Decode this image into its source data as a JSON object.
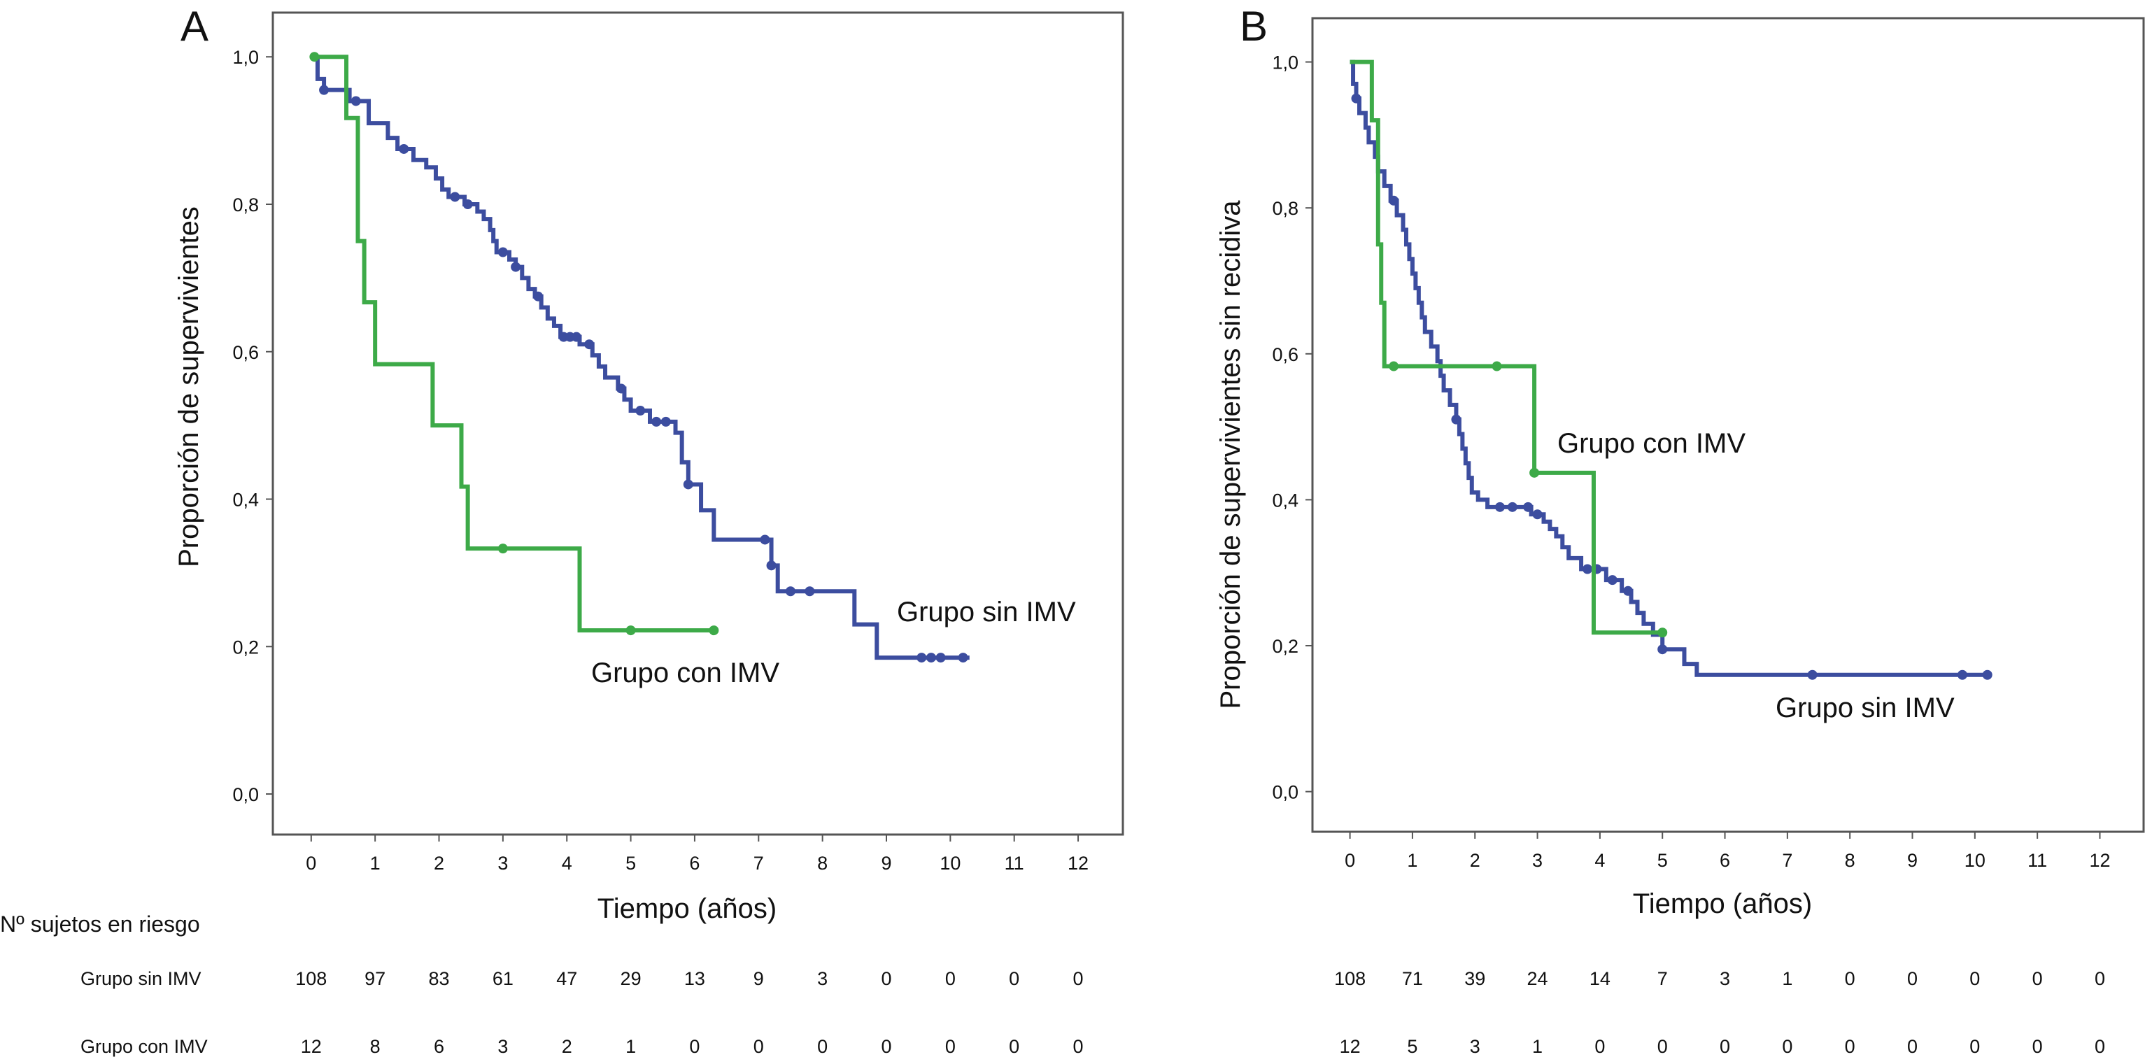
{
  "risk_table": {
    "title": "Nº sujetos en riesgo",
    "rows": [
      {
        "label": "Grupo sin IMV",
        "a": [
          "108",
          "97",
          "83",
          "61",
          "47",
          "29",
          "13",
          "9",
          "3",
          "0",
          "0",
          "0",
          "0"
        ],
        "b": [
          "108",
          "71",
          "39",
          "24",
          "14",
          "7",
          "3",
          "1",
          "0",
          "0",
          "0",
          "0",
          "0"
        ]
      },
      {
        "label": "Grupo con IMV",
        "a": [
          "12",
          "8",
          "6",
          "3",
          "2",
          "1",
          "0",
          "0",
          "0",
          "0",
          "0",
          "0",
          "0"
        ],
        "b": [
          "12",
          "5",
          "3",
          "1",
          "0",
          "0",
          "0",
          "0",
          "0",
          "0",
          "0",
          "0",
          "0"
        ]
      }
    ]
  },
  "chart_data": [
    {
      "type": "line",
      "panel_label": "A",
      "xlabel": "Tiempo (años)",
      "ylabel": "Proporción de supervivientes",
      "xlim": [
        -0.6,
        12.7
      ],
      "ylim": [
        -0.055,
        1.06
      ],
      "x_ticks": [
        0,
        1,
        2,
        3,
        4,
        5,
        6,
        7,
        8,
        9,
        10,
        11,
        12
      ],
      "y_ticks": [
        0.0,
        0.2,
        0.4,
        0.6,
        0.8,
        1.0
      ],
      "y_tick_labels": [
        "0,0",
        "0,2",
        "0,4",
        "0,6",
        "0,8",
        "1,0"
      ],
      "grid": false,
      "series": [
        {
          "name": "Grupo sin IMV",
          "color": "#3c4d9f",
          "label": "Grupo sin IMV",
          "steps": [
            [
              0,
              1.0
            ],
            [
              0.1,
              0.97
            ],
            [
              0.2,
              0.955
            ],
            [
              0.6,
              0.94
            ],
            [
              0.9,
              0.91
            ],
            [
              1.2,
              0.89
            ],
            [
              1.35,
              0.875
            ],
            [
              1.6,
              0.86
            ],
            [
              1.8,
              0.85
            ],
            [
              1.95,
              0.835
            ],
            [
              2.05,
              0.82
            ],
            [
              2.15,
              0.81
            ],
            [
              2.4,
              0.8
            ],
            [
              2.6,
              0.79
            ],
            [
              2.7,
              0.78
            ],
            [
              2.8,
              0.765
            ],
            [
              2.85,
              0.75
            ],
            [
              2.9,
              0.735
            ],
            [
              3.1,
              0.725
            ],
            [
              3.2,
              0.715
            ],
            [
              3.3,
              0.7
            ],
            [
              3.4,
              0.685
            ],
            [
              3.5,
              0.675
            ],
            [
              3.6,
              0.66
            ],
            [
              3.7,
              0.645
            ],
            [
              3.8,
              0.635
            ],
            [
              3.9,
              0.62
            ],
            [
              4.2,
              0.61
            ],
            [
              4.4,
              0.595
            ],
            [
              4.5,
              0.58
            ],
            [
              4.6,
              0.565
            ],
            [
              4.8,
              0.55
            ],
            [
              4.9,
              0.535
            ],
            [
              5.0,
              0.52
            ],
            [
              5.3,
              0.505
            ],
            [
              5.7,
              0.49
            ],
            [
              5.8,
              0.45
            ],
            [
              5.9,
              0.42
            ],
            [
              6.1,
              0.385
            ],
            [
              6.3,
              0.345
            ],
            [
              7.2,
              0.31
            ],
            [
              7.3,
              0.275
            ],
            [
              8.5,
              0.23
            ],
            [
              8.85,
              0.185
            ],
            [
              10.3,
              0.185
            ]
          ],
          "censor_x": [
            0.2,
            0.7,
            1.45,
            2.25,
            2.45,
            3.0,
            3.2,
            3.55,
            3.95,
            4.05,
            4.15,
            4.35,
            4.85,
            5.15,
            5.4,
            5.55,
            5.9,
            7.1,
            7.2,
            7.5,
            7.8,
            9.55,
            9.7,
            9.85,
            10.2
          ]
        },
        {
          "name": "Grupo con IMV",
          "color": "#3daa48",
          "label": "Grupo con IMV",
          "steps": [
            [
              0,
              1.0
            ],
            [
              0.55,
              0.917
            ],
            [
              0.73,
              0.75
            ],
            [
              0.83,
              0.667
            ],
            [
              1.0,
              0.583
            ],
            [
              1.9,
              0.5
            ],
            [
              2.35,
              0.417
            ],
            [
              2.45,
              0.333
            ],
            [
              4.2,
              0.222
            ],
            [
              6.3,
              0.222
            ]
          ],
          "censor_x": [
            0.05,
            3.0,
            5.0,
            6.3
          ]
        }
      ]
    },
    {
      "type": "line",
      "panel_label": "B",
      "xlabel": "Tiempo (años)",
      "ylabel": "Proporción de supervivientes sin recidiva",
      "xlim": [
        -0.6,
        12.7
      ],
      "ylim": [
        -0.055,
        1.06
      ],
      "x_ticks": [
        0,
        1,
        2,
        3,
        4,
        5,
        6,
        7,
        8,
        9,
        10,
        11,
        12
      ],
      "y_ticks": [
        0.0,
        0.2,
        0.4,
        0.6,
        0.8,
        1.0
      ],
      "y_tick_labels": [
        "0,0",
        "0,2",
        "0,4",
        "0,6",
        "0,8",
        "1,0"
      ],
      "grid": false,
      "series": [
        {
          "name": "Grupo sin IMV",
          "color": "#3c4d9f",
          "label": "Grupo sin IMV",
          "steps": [
            [
              0,
              1.0
            ],
            [
              0.05,
              0.97
            ],
            [
              0.1,
              0.95
            ],
            [
              0.15,
              0.93
            ],
            [
              0.25,
              0.91
            ],
            [
              0.3,
              0.89
            ],
            [
              0.4,
              0.87
            ],
            [
              0.45,
              0.85
            ],
            [
              0.55,
              0.83
            ],
            [
              0.65,
              0.81
            ],
            [
              0.75,
              0.79
            ],
            [
              0.85,
              0.77
            ],
            [
              0.9,
              0.75
            ],
            [
              0.95,
              0.73
            ],
            [
              1.0,
              0.71
            ],
            [
              1.05,
              0.69
            ],
            [
              1.1,
              0.67
            ],
            [
              1.15,
              0.65
            ],
            [
              1.2,
              0.63
            ],
            [
              1.3,
              0.61
            ],
            [
              1.4,
              0.59
            ],
            [
              1.45,
              0.57
            ],
            [
              1.5,
              0.55
            ],
            [
              1.6,
              0.53
            ],
            [
              1.7,
              0.51
            ],
            [
              1.75,
              0.49
            ],
            [
              1.8,
              0.47
            ],
            [
              1.85,
              0.45
            ],
            [
              1.9,
              0.43
            ],
            [
              1.95,
              0.41
            ],
            [
              2.05,
              0.4
            ],
            [
              2.2,
              0.39
            ],
            [
              2.9,
              0.38
            ],
            [
              3.1,
              0.37
            ],
            [
              3.2,
              0.36
            ],
            [
              3.3,
              0.35
            ],
            [
              3.4,
              0.335
            ],
            [
              3.5,
              0.32
            ],
            [
              3.7,
              0.305
            ],
            [
              4.1,
              0.29
            ],
            [
              4.35,
              0.275
            ],
            [
              4.5,
              0.26
            ],
            [
              4.6,
              0.245
            ],
            [
              4.7,
              0.23
            ],
            [
              4.85,
              0.215
            ],
            [
              5.0,
              0.195
            ],
            [
              5.35,
              0.175
            ],
            [
              5.55,
              0.16
            ],
            [
              10.2,
              0.16
            ]
          ],
          "censor_x": [
            0.1,
            0.7,
            1.7,
            2.4,
            2.6,
            2.85,
            3.0,
            3.8,
            3.95,
            4.2,
            4.45,
            5.0,
            7.4,
            9.8,
            10.2
          ]
        },
        {
          "name": "Grupo con IMV",
          "color": "#3daa48",
          "label": "Grupo con IMV",
          "steps": [
            [
              0,
              1.0
            ],
            [
              0.35,
              0.92
            ],
            [
              0.45,
              0.75
            ],
            [
              0.5,
              0.67
            ],
            [
              0.55,
              0.583
            ],
            [
              2.95,
              0.437
            ],
            [
              3.9,
              0.218
            ],
            [
              5.0,
              0.218
            ]
          ],
          "censor_x": [
            0.7,
            2.35,
            2.95,
            5.0
          ]
        }
      ]
    }
  ]
}
